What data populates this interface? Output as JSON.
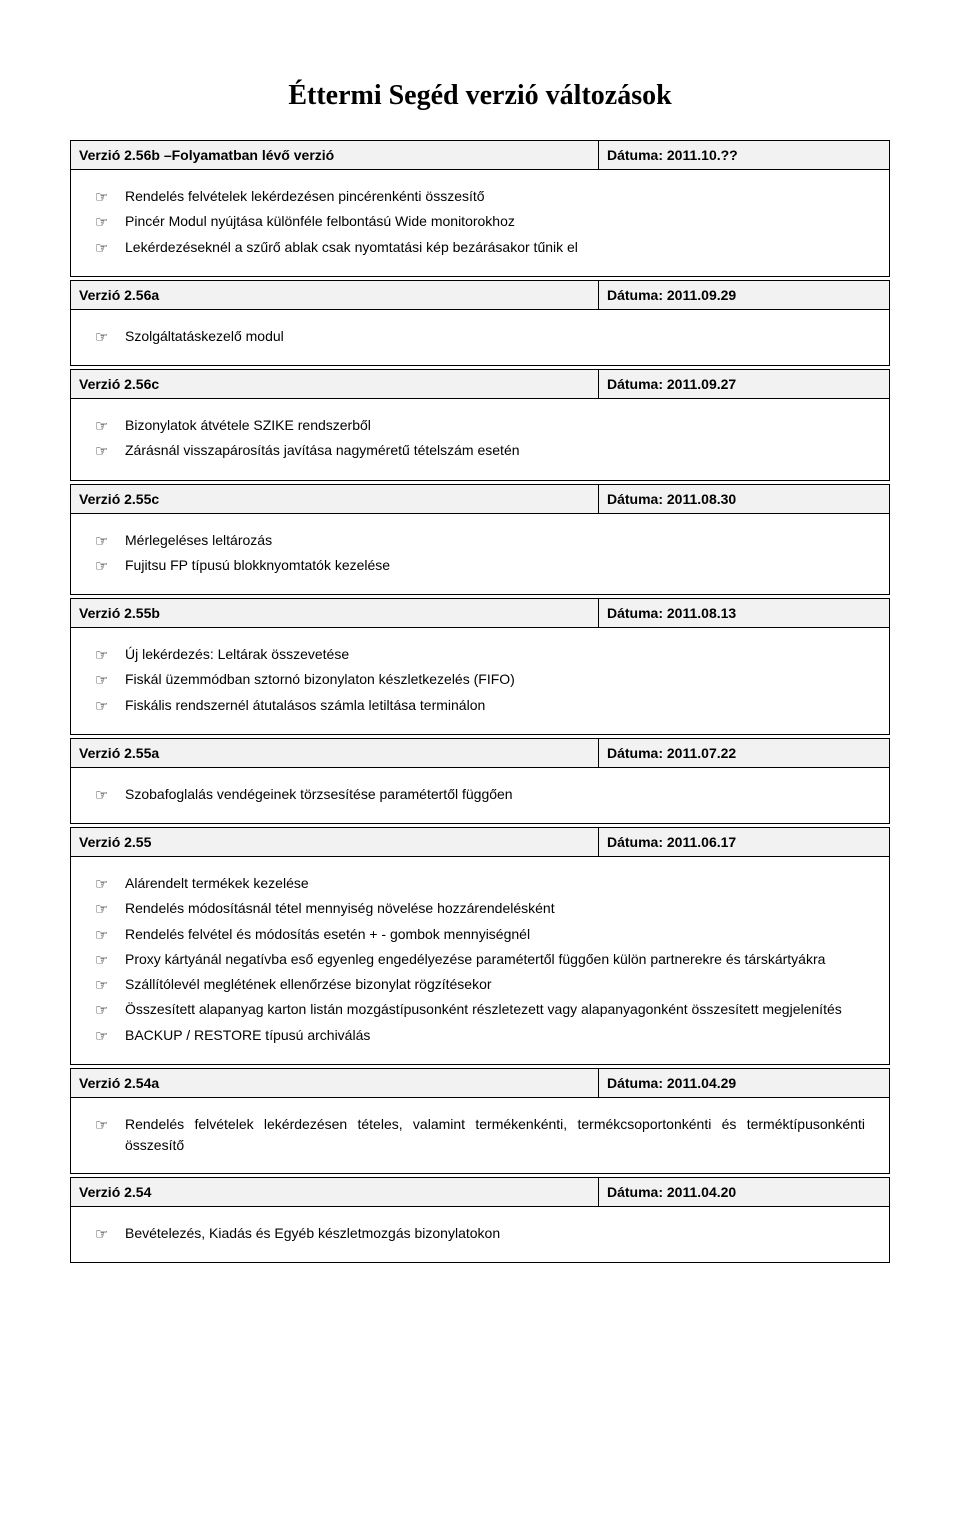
{
  "title": "Éttermi Segéd verzió változások",
  "bullet_glyph": "☞",
  "sections": [
    {
      "version": "Verzió 2.56b –Folyamatban lévő verzió",
      "date": "Dátuma: 2011.10.??",
      "items": [
        "Rendelés felvételek lekérdezésen pincérenkénti összesítő",
        "Pincér Modul nyújtása különféle felbontású Wide monitorokhoz",
        "Lekérdezéseknél a szűrő ablak csak nyomtatási kép bezárásakor tűnik el"
      ]
    },
    {
      "version": "Verzió 2.56a",
      "date": "Dátuma: 2011.09.29",
      "items": [
        "Szolgáltatáskezelő modul"
      ]
    },
    {
      "version": "Verzió 2.56c",
      "date": "Dátuma: 2011.09.27",
      "items": [
        "Bizonylatok átvétele SZIKE rendszerből",
        "Zárásnál visszapárosítás javítása nagyméretű tételszám esetén"
      ]
    },
    {
      "version": "Verzió 2.55c",
      "date": "Dátuma: 2011.08.30",
      "items": [
        "Mérlegeléses leltározás",
        "Fujitsu FP típusú blokknyomtatók kezelése"
      ]
    },
    {
      "version": "Verzió 2.55b",
      "date": "Dátuma: 2011.08.13",
      "items": [
        "Új lekérdezés: Leltárak összevetése",
        "Fiskál üzemmódban sztornó bizonylaton készletkezelés (FIFO)",
        "Fiskális rendszernél átutalásos számla letiltása terminálon"
      ]
    },
    {
      "version": "Verzió 2.55a",
      "date": "Dátuma: 2011.07.22",
      "items": [
        "Szobafoglalás vendégeinek törzsesítése paramétertől függően"
      ]
    },
    {
      "version": "Verzió 2.55",
      "date": "Dátuma: 2011.06.17",
      "items": [
        "Alárendelt termékek kezelése",
        "Rendelés módosításnál tétel mennyiség növelése  hozzárendelésként",
        "Rendelés felvétel és módosítás esetén + - gombok mennyiségnél",
        "Proxy kártyánál negatívba eső egyenleg engedélyezése paramétertől függően külön partnerekre és társkártyákra",
        "Szállítólevél meglétének ellenőrzése bizonylat rögzítésekor",
        "Összesített alapanyag karton listán mozgástípusonként részletezett vagy alapanyagonként összesített megjelenítés",
        "BACKUP / RESTORE típusú archiválás"
      ]
    },
    {
      "version": "Verzió 2.54a",
      "date": "Dátuma: 2011.04.29",
      "items_justified": true,
      "items": [
        "Rendelés felvételek lekérdezésen tételes, valamint termékenkénti, termékcsoportonkénti és terméktípusonkénti összesítő"
      ]
    },
    {
      "version": "Verzió 2.54",
      "date": "Dátuma: 2011.04.20",
      "items": [
        "Bevételezés, Kiadás és Egyéb készletmozgás bizonylatokon"
      ]
    }
  ]
}
